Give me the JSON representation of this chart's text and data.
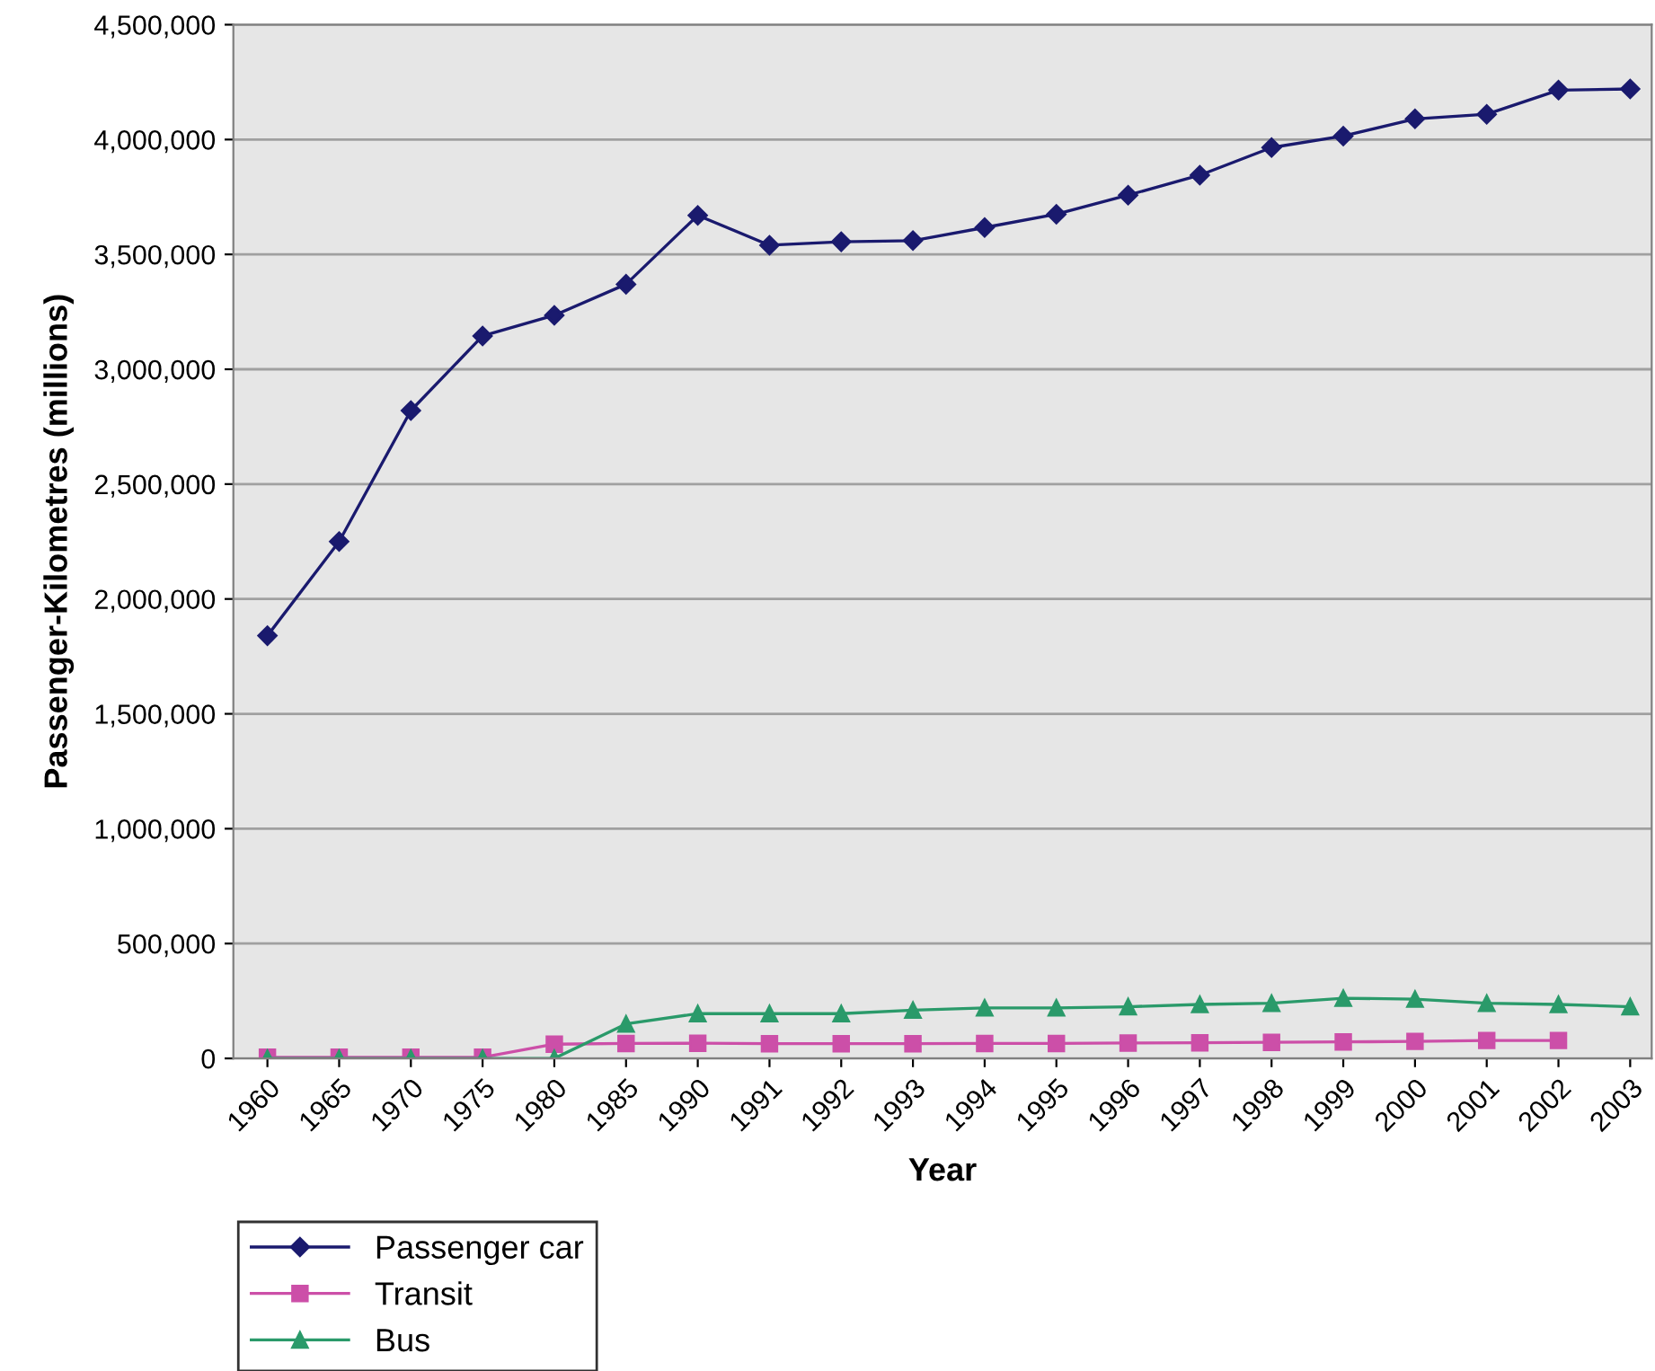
{
  "chart_data": {
    "type": "line",
    "xlabel": "Year",
    "ylabel": "Passenger-Kilometres (millions)",
    "categories": [
      "1960",
      "1965",
      "1970",
      "1975",
      "1980",
      "1985",
      "1990",
      "1991",
      "1992",
      "1993",
      "1994",
      "1995",
      "1996",
      "1997",
      "1998",
      "1999",
      "2000",
      "2001",
      "2002",
      "2003"
    ],
    "series": [
      {
        "name": "Passenger car",
        "color": "#1a1a6e",
        "marker": "diamond",
        "values": [
          1840000,
          2250000,
          2820000,
          3145000,
          3235000,
          3370000,
          3670000,
          3540000,
          3555000,
          3560000,
          3617000,
          3675000,
          3758000,
          3845000,
          3965000,
          4015000,
          4090000,
          4110000,
          4215000,
          4220000
        ]
      },
      {
        "name": "Transit",
        "color": "#cc4fa8",
        "marker": "square",
        "values": [
          5000,
          5000,
          5000,
          5000,
          62000,
          65000,
          66000,
          64000,
          64000,
          64000,
          65000,
          65000,
          67000,
          68000,
          70000,
          72000,
          74000,
          78000,
          78000,
          null
        ]
      },
      {
        "name": "Bus",
        "color": "#2a9a6a",
        "marker": "triangle",
        "values": [
          0,
          0,
          0,
          0,
          0,
          150000,
          195000,
          195000,
          195000,
          210000,
          220000,
          220000,
          225000,
          235000,
          240000,
          262000,
          258000,
          240000,
          235000,
          225000
        ]
      }
    ],
    "ylim": [
      0,
      4500000
    ],
    "yticks": [
      {
        "value": 0,
        "label": "0"
      },
      {
        "value": 500000,
        "label": "500,000"
      },
      {
        "value": 1000000,
        "label": "1,000,000"
      },
      {
        "value": 1500000,
        "label": "1,500,000"
      },
      {
        "value": 2000000,
        "label": "2,000,000"
      },
      {
        "value": 2500000,
        "label": "2,500,000"
      },
      {
        "value": 3000000,
        "label": "3,000,000"
      },
      {
        "value": 3500000,
        "label": "3,500,000"
      },
      {
        "value": 4000000,
        "label": "4,000,000"
      },
      {
        "value": 4500000,
        "label": "4,500,000"
      }
    ],
    "grid": "y",
    "legend": "bottom left",
    "line_style": "solid"
  }
}
